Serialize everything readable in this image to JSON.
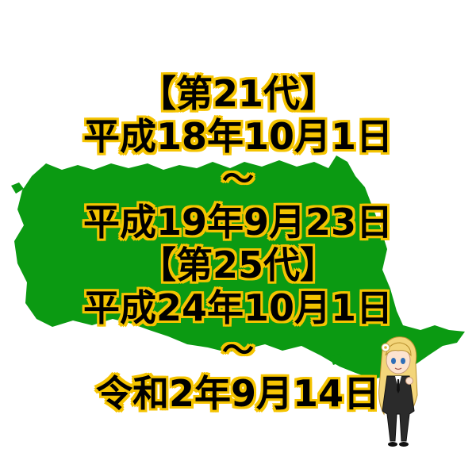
{
  "title_lines": [
    "【第21代】",
    "平成18年10月1日",
    "～",
    "平成19年9月23日",
    "【第25代】",
    "平成24年10月1日",
    "～",
    "令和2年9月14日"
  ],
  "colors": {
    "map_fill": "#0b9a12",
    "text_fill": "#000000",
    "text_outline": "#f5c400",
    "background": "#ffffff"
  },
  "illustrations": {
    "map": "green-map-silhouette",
    "character": "blonde-character-in-black-suit"
  }
}
